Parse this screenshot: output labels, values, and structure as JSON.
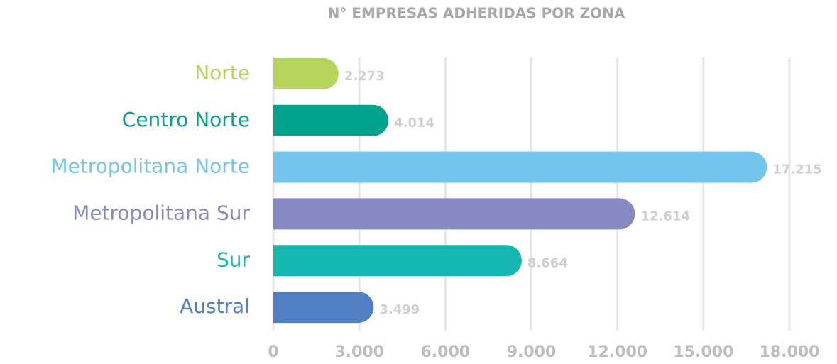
{
  "chart_data": {
    "type": "bar",
    "orientation": "horizontal",
    "title": "N° EMPRESAS ADHERIDAS POR ZONA",
    "categories": [
      "Norte",
      "Centro Norte",
      "Metropolitana Norte",
      "Metropolitana Sur",
      "Sur",
      "Austral"
    ],
    "values": [
      2273,
      4014,
      17215,
      12614,
      8664,
      3499
    ],
    "value_labels": [
      "2.273",
      "4.014",
      "17.215",
      "12.614",
      "8.664",
      "3.499"
    ],
    "colors": [
      "#b5d55a",
      "#00a38c",
      "#74c5ee",
      "#8789c4",
      "#14b8b0",
      "#5280c4"
    ],
    "xlim": [
      0,
      18000
    ],
    "xticks": [
      0,
      {
        "value": 3000,
        "label": "3.000"
      },
      {
        "value": 6000,
        "label": "6.000"
      },
      {
        "value": 9000,
        "label": "9.000"
      },
      {
        "value": 12000,
        "label": "12.000"
      },
      {
        "value": 15000,
        "label": "15.000"
      },
      {
        "value": 18000,
        "label": "18.000"
      }
    ],
    "grid": true
  }
}
